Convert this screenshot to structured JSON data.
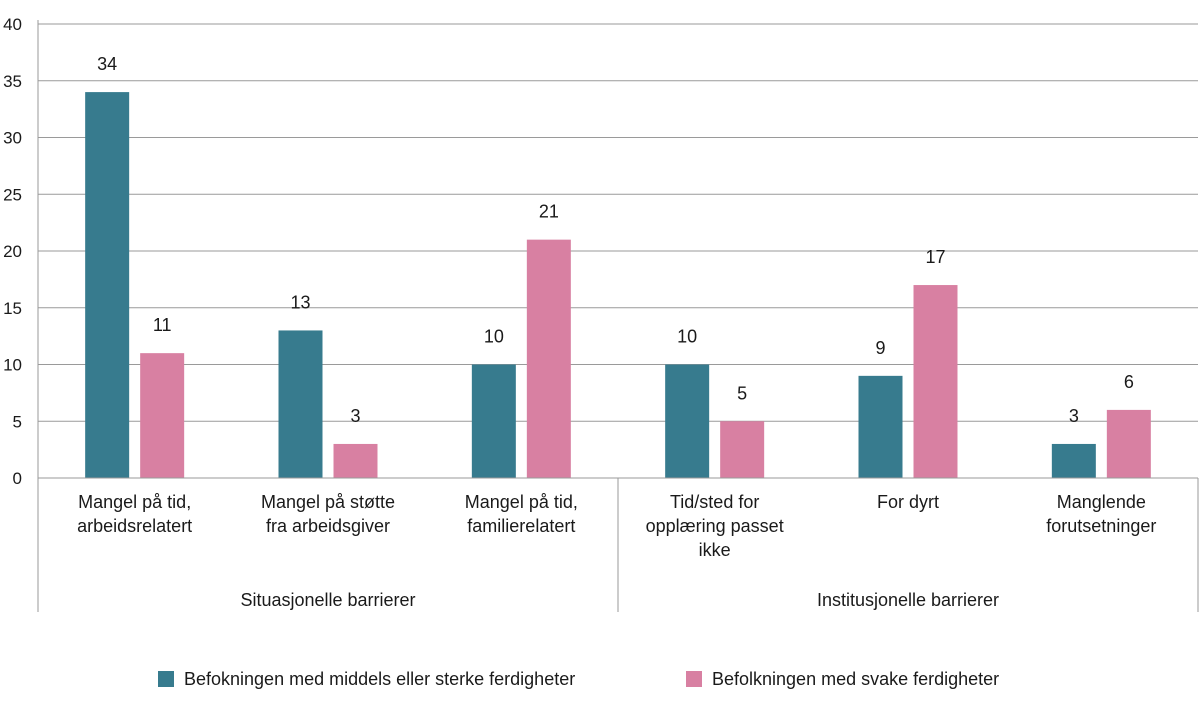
{
  "chart_data": {
    "type": "bar",
    "title": "",
    "xlabel": "",
    "ylabel": "",
    "ylim": [
      0,
      40
    ],
    "yticks": [
      0,
      5,
      10,
      15,
      20,
      25,
      30,
      35,
      40
    ],
    "grid": true,
    "legend_position": "bottom",
    "categories": [
      [
        "Mangel på tid,",
        "arbeidsrelatert"
      ],
      [
        "Mangel på støtte",
        "fra arbeidsgiver"
      ],
      [
        "Mangel på tid,",
        "familierelatert"
      ],
      [
        "Tid/sted for",
        "opplæring passet",
        "ikke"
      ],
      [
        "For dyrt"
      ],
      [
        "Manglende",
        "forutsetninger"
      ]
    ],
    "groups": [
      {
        "label": "Situasjonelle barrierer",
        "span": [
          0,
          2
        ]
      },
      {
        "label": "Institusjonelle barrierer",
        "span": [
          3,
          5
        ]
      }
    ],
    "series": [
      {
        "name": "Befokningen med middels eller sterke ferdigheter",
        "color": "#377b8e",
        "values": [
          34,
          13,
          10,
          10,
          9,
          3
        ]
      },
      {
        "name": "Befolkningen med svake ferdigheter",
        "color": "#d880a2",
        "values": [
          11,
          3,
          21,
          5,
          17,
          6
        ]
      }
    ]
  }
}
